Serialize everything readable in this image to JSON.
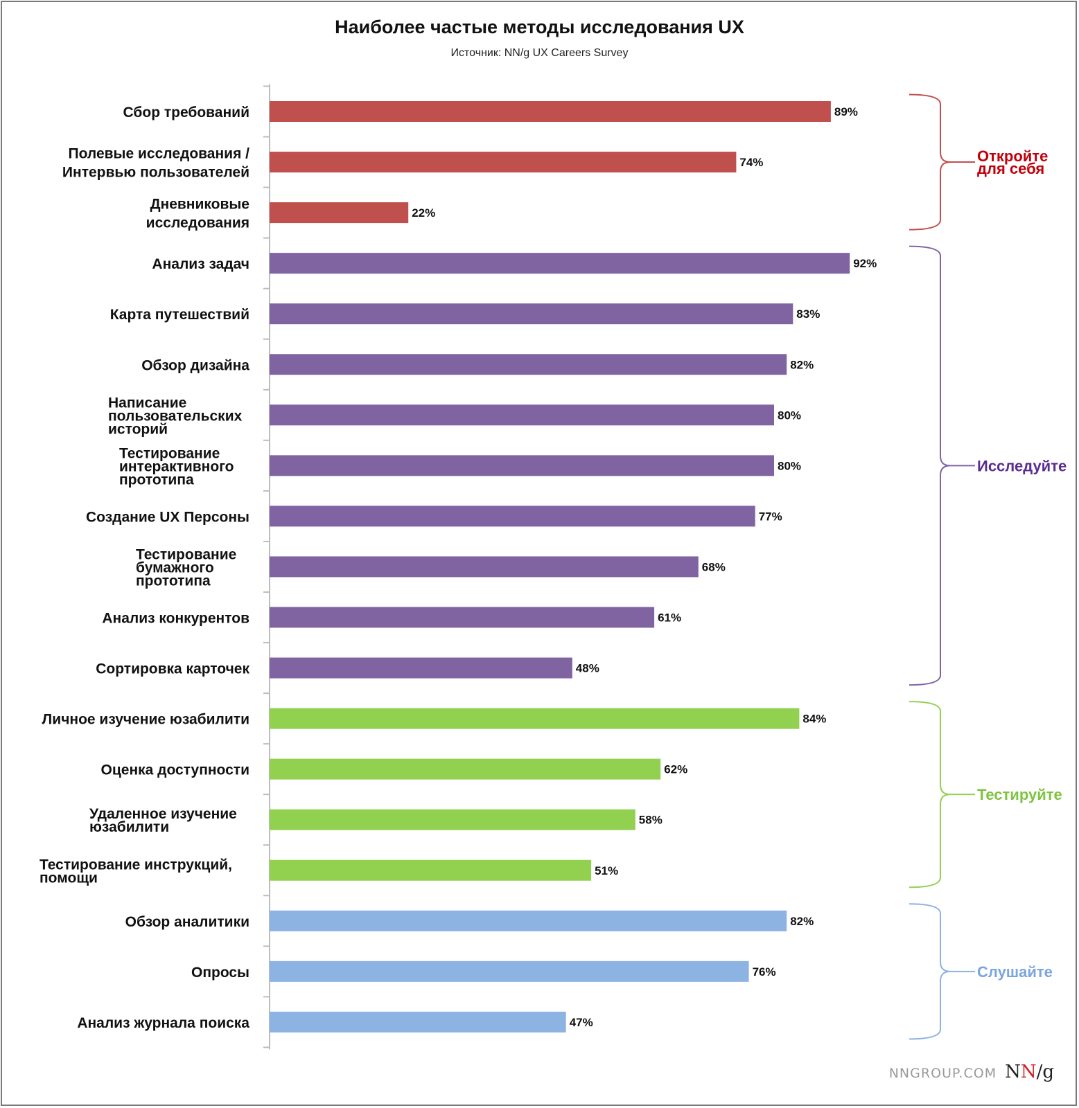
{
  "title": "Наиболее частые методы исследования UX",
  "subtitle": "Источник: NN/g UX Careers Survey",
  "brand": {
    "url": "NNGROUP.COM",
    "logo_n1": "N",
    "logo_n2": "N",
    "logo_g": "/g"
  },
  "chart_data": {
    "type": "bar",
    "orientation": "horizontal",
    "unit": "%",
    "xlim": [
      0,
      100
    ],
    "grid": false,
    "categories": [
      "Сбор требований",
      "Полевые исследования / Интервью пользователей",
      "Дневниковые исследования",
      "Анализ задач",
      "Карта путешествий",
      "Обзор дизайна",
      "Написание пользовательских историй",
      "Тестирование интерактивного прототипа",
      "Создание UX Персоны",
      "Тестирование бумажного прототипа",
      "Анализ конкурентов",
      "Сортировка карточек",
      "Личное изучение юзабилити",
      "Оценка доступности",
      "Удаленное изучение юзабилити",
      "Тестирование инструкций, помощи",
      "Обзор аналитики",
      "Опросы",
      "Анализ журнала поиска"
    ],
    "category_lines": [
      [
        "Сбор требований"
      ],
      [
        "Полевые исследования /",
        "Интервью пользователей"
      ],
      [
        "Дневниковые",
        "исследования"
      ],
      [
        "Анализ задач"
      ],
      [
        "Карта путешествий"
      ],
      [
        "Обзор дизайна"
      ],
      [
        "Написание",
        "пользовательских",
        "историй"
      ],
      [
        "Тестирование",
        "интерактивного",
        "прототипа"
      ],
      [
        "Создание UX Персоны"
      ],
      [
        "Тестирование",
        "бумажного",
        "прототипа"
      ],
      [
        "Анализ конкурентов"
      ],
      [
        "Сортировка карточек"
      ],
      [
        "Личное изучение юзабилити"
      ],
      [
        "Оценка доступности"
      ],
      [
        "Удаленное изучение",
        "юзабилити"
      ],
      [
        "Тестирование инструкций,",
        "помощи"
      ],
      [
        "Обзор аналитики"
      ],
      [
        "Опросы"
      ],
      [
        "Анализ журнала поиска"
      ]
    ],
    "values": [
      89,
      74,
      22,
      92,
      83,
      82,
      80,
      80,
      77,
      68,
      61,
      48,
      84,
      62,
      58,
      51,
      82,
      76,
      47
    ],
    "data_labels": [
      "89%",
      "74%",
      "22%",
      "92%",
      "83%",
      "82%",
      "80%",
      "80%",
      "77%",
      "68%",
      "61%",
      "48%",
      "84%",
      "62%",
      "58%",
      "51%",
      "82%",
      "76%",
      "47%"
    ],
    "groups": [
      {
        "label_lines": [
          "Откройте",
          "для себя"
        ],
        "color": "#c0504d",
        "label_color": "#c0000a",
        "start": 0,
        "end": 2
      },
      {
        "label_lines": [
          "Исследуйте"
        ],
        "color": "#8064a2",
        "label_color": "#5b2c8f",
        "start": 3,
        "end": 11
      },
      {
        "label_lines": [
          "Тестируйте"
        ],
        "color": "#92d050",
        "label_color": "#7fc241",
        "start": 12,
        "end": 15
      },
      {
        "label_lines": [
          "Слушайте"
        ],
        "color": "#8db3e2",
        "label_color": "#7aa6dc",
        "start": 16,
        "end": 18
      }
    ]
  }
}
